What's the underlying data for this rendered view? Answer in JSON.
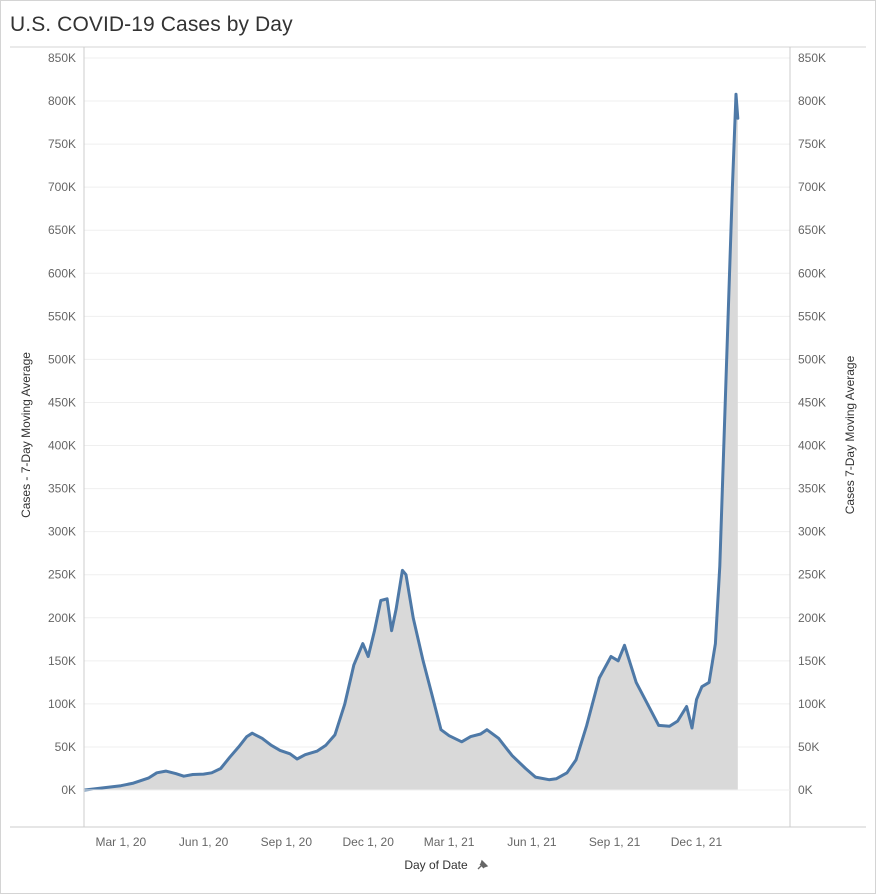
{
  "title": "U.S. COVID-19 Cases by Day",
  "colors": {
    "line": "#4e79a7",
    "area": "#d9d9d9",
    "grid": "#efefef",
    "axis": "#cccccc",
    "text": "#666666"
  },
  "chart_data": {
    "type": "area",
    "title": "U.S. COVID-19 Cases by Day",
    "xlabel": "Day of Date",
    "ylabel_left": "Cases - 7-Day Moving Average",
    "ylabel_right": "Cases 7-Day Moving Average",
    "xlim": [
      "2020-01-20",
      "2022-03-15"
    ],
    "ylim": [
      0,
      850000
    ],
    "grid": true,
    "legend": "none",
    "x_ticks": [
      {
        "date": "2020-03-01",
        "label": "Mar 1, 20"
      },
      {
        "date": "2020-06-01",
        "label": "Jun 1, 20"
      },
      {
        "date": "2020-09-01",
        "label": "Sep 1, 20"
      },
      {
        "date": "2020-12-01",
        "label": "Dec 1, 20"
      },
      {
        "date": "2021-03-01",
        "label": "Mar 1, 21"
      },
      {
        "date": "2021-06-01",
        "label": "Jun 1, 21"
      },
      {
        "date": "2021-09-01",
        "label": "Sep 1, 21"
      },
      {
        "date": "2021-12-01",
        "label": "Dec 1, 21"
      }
    ],
    "y_ticks": [
      {
        "value": 0,
        "label": "0K"
      },
      {
        "value": 50000,
        "label": "50K"
      },
      {
        "value": 100000,
        "label": "100K"
      },
      {
        "value": 150000,
        "label": "150K"
      },
      {
        "value": 200000,
        "label": "200K"
      },
      {
        "value": 250000,
        "label": "250K"
      },
      {
        "value": 300000,
        "label": "300K"
      },
      {
        "value": 350000,
        "label": "350K"
      },
      {
        "value": 400000,
        "label": "400K"
      },
      {
        "value": 450000,
        "label": "450K"
      },
      {
        "value": 500000,
        "label": "500K"
      },
      {
        "value": 550000,
        "label": "550K"
      },
      {
        "value": 600000,
        "label": "600K"
      },
      {
        "value": 650000,
        "label": "650K"
      },
      {
        "value": 700000,
        "label": "700K"
      },
      {
        "value": 750000,
        "label": "750K"
      },
      {
        "value": 800000,
        "label": "800K"
      },
      {
        "value": 850000,
        "label": "850K"
      }
    ],
    "series": [
      {
        "points": [
          [
            "2020-01-21",
            0
          ],
          [
            "2020-03-01",
            5000
          ],
          [
            "2020-03-15",
            8000
          ],
          [
            "2020-04-01",
            14000
          ],
          [
            "2020-04-10",
            20000
          ],
          [
            "2020-04-20",
            22000
          ],
          [
            "2020-05-01",
            19000
          ],
          [
            "2020-05-10",
            16000
          ],
          [
            "2020-05-20",
            18000
          ],
          [
            "2020-06-01",
            18500
          ],
          [
            "2020-06-10",
            20000
          ],
          [
            "2020-06-20",
            25000
          ],
          [
            "2020-06-30",
            38000
          ],
          [
            "2020-07-10",
            50000
          ],
          [
            "2020-07-19",
            62000
          ],
          [
            "2020-07-25",
            66000
          ],
          [
            "2020-08-05",
            60000
          ],
          [
            "2020-08-15",
            52000
          ],
          [
            "2020-08-25",
            46000
          ],
          [
            "2020-09-05",
            42000
          ],
          [
            "2020-09-13",
            36000
          ],
          [
            "2020-09-22",
            41000
          ],
          [
            "2020-10-05",
            45000
          ],
          [
            "2020-10-15",
            52000
          ],
          [
            "2020-10-25",
            64000
          ],
          [
            "2020-11-05",
            100000
          ],
          [
            "2020-11-15",
            145000
          ],
          [
            "2020-11-25",
            170000
          ],
          [
            "2020-12-01",
            155000
          ],
          [
            "2020-12-08",
            185000
          ],
          [
            "2020-12-15",
            220000
          ],
          [
            "2020-12-22",
            222000
          ],
          [
            "2020-12-27",
            185000
          ],
          [
            "2021-01-01",
            210000
          ],
          [
            "2021-01-08",
            255000
          ],
          [
            "2021-01-12",
            250000
          ],
          [
            "2021-01-20",
            200000
          ],
          [
            "2021-01-31",
            150000
          ],
          [
            "2021-02-10",
            110000
          ],
          [
            "2021-02-20",
            70000
          ],
          [
            "2021-03-01",
            63000
          ],
          [
            "2021-03-15",
            56000
          ],
          [
            "2021-03-25",
            62000
          ],
          [
            "2021-04-05",
            65000
          ],
          [
            "2021-04-12",
            70000
          ],
          [
            "2021-04-25",
            60000
          ],
          [
            "2021-05-10",
            40000
          ],
          [
            "2021-05-25",
            25000
          ],
          [
            "2021-06-05",
            15000
          ],
          [
            "2021-06-20",
            12000
          ],
          [
            "2021-06-28",
            13000
          ],
          [
            "2021-07-10",
            20000
          ],
          [
            "2021-07-20",
            35000
          ],
          [
            "2021-08-01",
            75000
          ],
          [
            "2021-08-15",
            130000
          ],
          [
            "2021-08-28",
            155000
          ],
          [
            "2021-09-05",
            150000
          ],
          [
            "2021-09-12",
            168000
          ],
          [
            "2021-09-25",
            125000
          ],
          [
            "2021-10-10",
            95000
          ],
          [
            "2021-10-20",
            75000
          ],
          [
            "2021-11-01",
            74000
          ],
          [
            "2021-11-10",
            80000
          ],
          [
            "2021-11-20",
            97000
          ],
          [
            "2021-11-26",
            72000
          ],
          [
            "2021-12-01",
            105000
          ],
          [
            "2021-12-07",
            120000
          ],
          [
            "2021-12-15",
            125000
          ],
          [
            "2021-12-22",
            170000
          ],
          [
            "2021-12-27",
            260000
          ],
          [
            "2022-01-03",
            480000
          ],
          [
            "2022-01-10",
            700000
          ],
          [
            "2022-01-14",
            808000
          ],
          [
            "2022-01-16",
            780000
          ]
        ]
      }
    ]
  }
}
